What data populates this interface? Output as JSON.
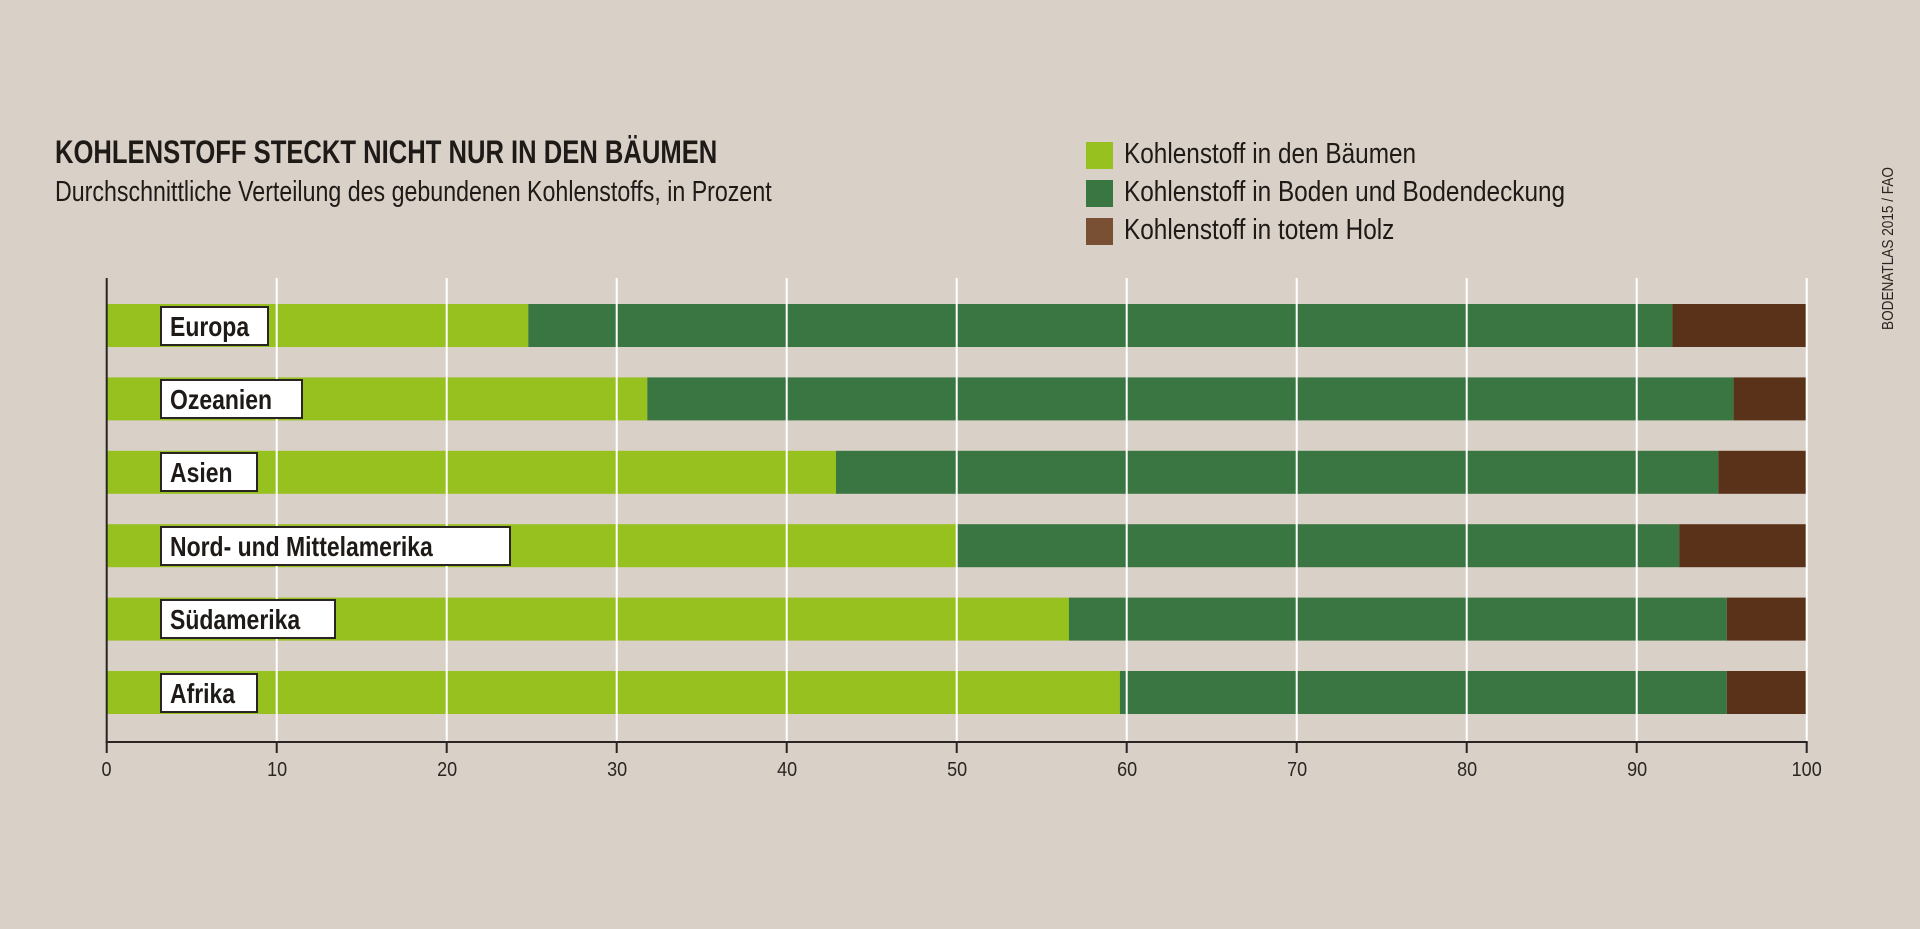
{
  "colors": {
    "background": "#d9d0c7",
    "trees": "#97c11f",
    "soil": "#3a7641",
    "deadwood": "#5a3219",
    "deadwood_legend": "#7a5035",
    "grid": "#ffffff",
    "axis": "#2a2522"
  },
  "source": "BODENATLAS 2015 / FAO",
  "chart_data": {
    "type": "bar",
    "orientation": "horizontal",
    "stacked": true,
    "title": "KOHLENSTOFF STECKT NICHT NUR IN DEN BÄUMEN",
    "subtitle": "Durchschnittliche Verteilung des gebundenen Kohlenstoffs, in Prozent",
    "xlabel": "",
    "ylabel": "",
    "xlim": [
      0,
      100
    ],
    "xticks": [
      0,
      10,
      20,
      30,
      40,
      50,
      60,
      70,
      80,
      90,
      100
    ],
    "grid": true,
    "legend_position": "top-right",
    "categories": [
      "Europa",
      "Ozeanien",
      "Asien",
      "Nord- und Mittelamerika",
      "Südamerika",
      "Afrika"
    ],
    "series": [
      {
        "name": "Kohlenstoff in den Bäumen",
        "color": "#97c11f",
        "values": [
          24.8,
          31.8,
          42.9,
          50.0,
          56.6,
          59.6
        ]
      },
      {
        "name": "Kohlenstoff in Boden und Bodendeckung",
        "color": "#3a7641",
        "values": [
          67.3,
          63.9,
          51.9,
          42.5,
          38.7,
          35.7
        ]
      },
      {
        "name": "Kohlenstoff in totem Holz",
        "color": "#5a3219",
        "values": [
          7.9,
          4.3,
          5.2,
          7.5,
          4.7,
          4.7
        ]
      }
    ]
  }
}
